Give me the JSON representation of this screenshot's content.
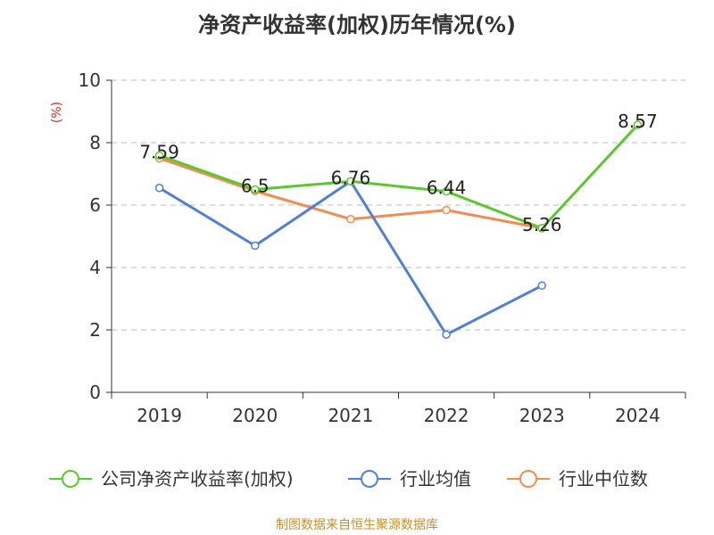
{
  "title": "净资产收益率(加权)历年情况(%)",
  "footer": "制图数据来自恒生聚源数据库",
  "colors": {
    "footer": "#c8912a",
    "unit": "#d9291c",
    "axis": "#333333",
    "grid": "#bbbbbb"
  },
  "chart_data": {
    "type": "line",
    "ylabel": "(%)",
    "ylim": [
      0,
      10
    ],
    "yticks": [
      0,
      2,
      4,
      6,
      8,
      10
    ],
    "grid": "horizontal dashed",
    "legend_placement": "bottom",
    "categories": [
      "2019",
      "2020",
      "2021",
      "2022",
      "2023",
      "2024"
    ],
    "series": [
      {
        "name": "公司净资产收益率(加权)",
        "color": "#5ac82e",
        "values": [
          7.59,
          6.5,
          6.76,
          6.44,
          5.26,
          8.57
        ],
        "labels": [
          "7.59",
          "6.5",
          "6.76",
          "6.44",
          "5.26",
          "8.57"
        ]
      },
      {
        "name": "行业均值",
        "color": "#4f80d8",
        "values": [
          6.55,
          4.7,
          6.76,
          1.85,
          3.42,
          null
        ]
      },
      {
        "name": "行业中位数",
        "color": "#f28c52",
        "values": [
          7.5,
          6.45,
          5.55,
          5.84,
          5.26,
          null
        ]
      }
    ]
  }
}
